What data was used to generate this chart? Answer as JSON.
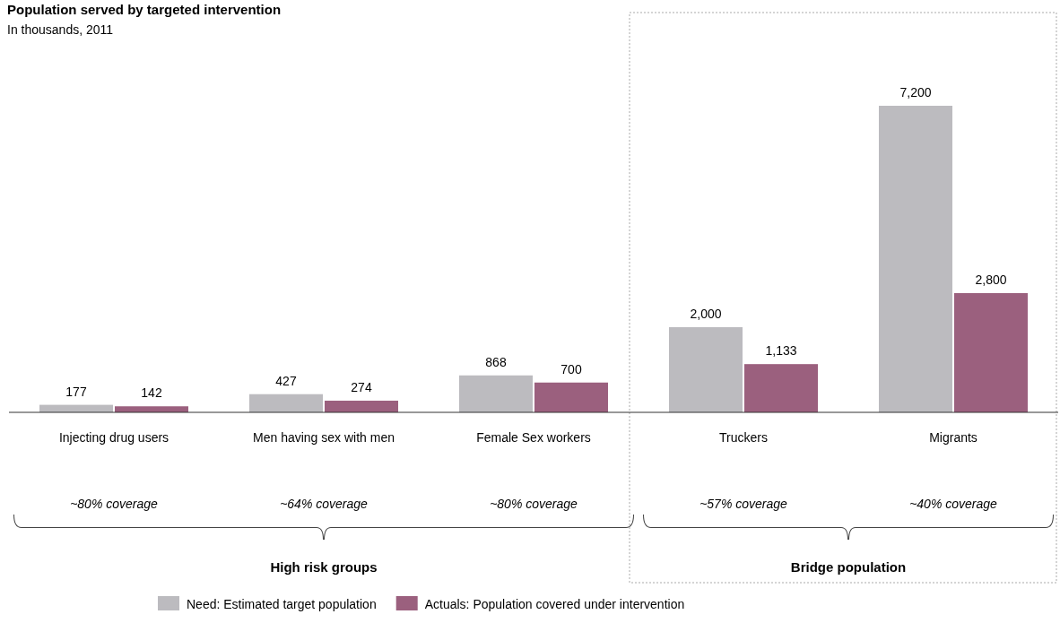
{
  "chart_data": {
    "type": "bar",
    "title": "Population served by targeted intervention",
    "subtitle": "In thousands, 2011",
    "categories": [
      "Injecting drug users",
      "Men having sex with men",
      "Female Sex workers",
      "Truckers",
      "Migrants"
    ],
    "series": [
      {
        "name": "Need: Estimated target population",
        "color": "#bcbbbf",
        "values": [
          177,
          427,
          868,
          2000,
          7200
        ],
        "value_labels": [
          "177",
          "427",
          "868",
          "2,000",
          "7,200"
        ]
      },
      {
        "name": "Actuals: Population covered under intervention",
        "color": "#9b607e",
        "values": [
          142,
          274,
          700,
          1133,
          2800
        ],
        "value_labels": [
          "142",
          "274",
          "700",
          "1,133",
          "2,800"
        ]
      }
    ],
    "legend": "bottom",
    "annotations": [
      "~80% coverage",
      "~64% coverage",
      "~80% coverage",
      "~57% coverage",
      "~40% coverage",
      "High risk groups",
      "Bridge population"
    ]
  }
}
